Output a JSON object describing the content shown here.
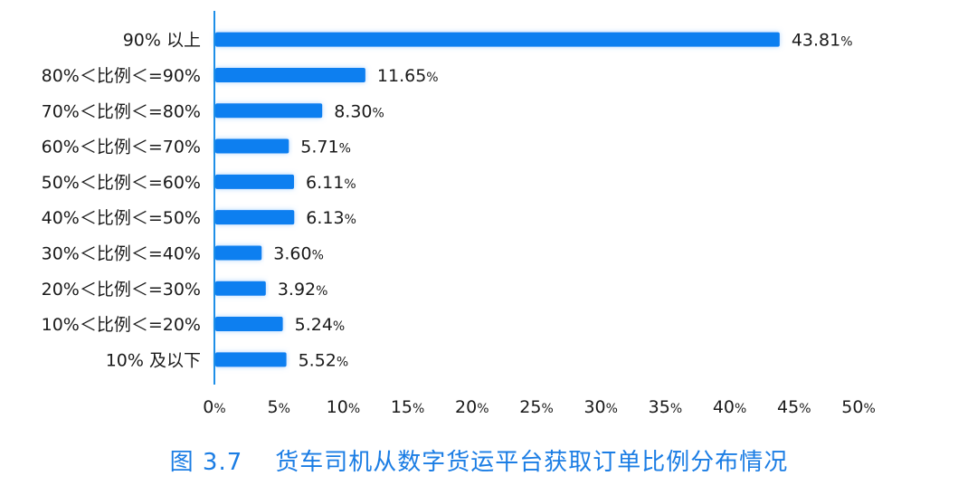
{
  "caption": {
    "number": "图 3.7",
    "title": "货车司机从数字货运平台获取订单比例分布情况"
  },
  "colors": {
    "bar": "#0a7ff0",
    "axis": "#1e8fe8",
    "caption": "#1b7de4",
    "text": "#1a1a1a"
  },
  "chart_data": {
    "type": "bar",
    "orientation": "horizontal",
    "categories": [
      "90% 以上",
      "80%＜比例＜=90%",
      "70%＜比例＜=80%",
      "60%＜比例＜=70%",
      "50%＜比例＜=60%",
      "40%＜比例＜=50%",
      "30%＜比例＜=40%",
      "20%＜比例＜=30%",
      "10%＜比例＜=20%",
      "10% 及以下"
    ],
    "values": [
      43.81,
      11.65,
      8.3,
      5.71,
      6.11,
      6.13,
      3.6,
      3.92,
      5.24,
      5.52
    ],
    "value_labels": [
      "43.81",
      "11.65",
      "8.30",
      "5.71",
      "6.11",
      "6.13",
      "3.60",
      "3.92",
      "5.24",
      "5.52"
    ],
    "value_unit": "%",
    "xlim": [
      0,
      50
    ],
    "xticks": [
      0,
      5,
      10,
      15,
      20,
      25,
      30,
      35,
      40,
      45,
      50
    ],
    "xtick_labels": [
      "0",
      "5",
      "10",
      "15",
      "20",
      "25",
      "30",
      "35",
      "40",
      "45",
      "50"
    ],
    "xtick_unit": "%",
    "grid": false,
    "legend": "none",
    "title": "",
    "xlabel": "",
    "ylabel": ""
  }
}
